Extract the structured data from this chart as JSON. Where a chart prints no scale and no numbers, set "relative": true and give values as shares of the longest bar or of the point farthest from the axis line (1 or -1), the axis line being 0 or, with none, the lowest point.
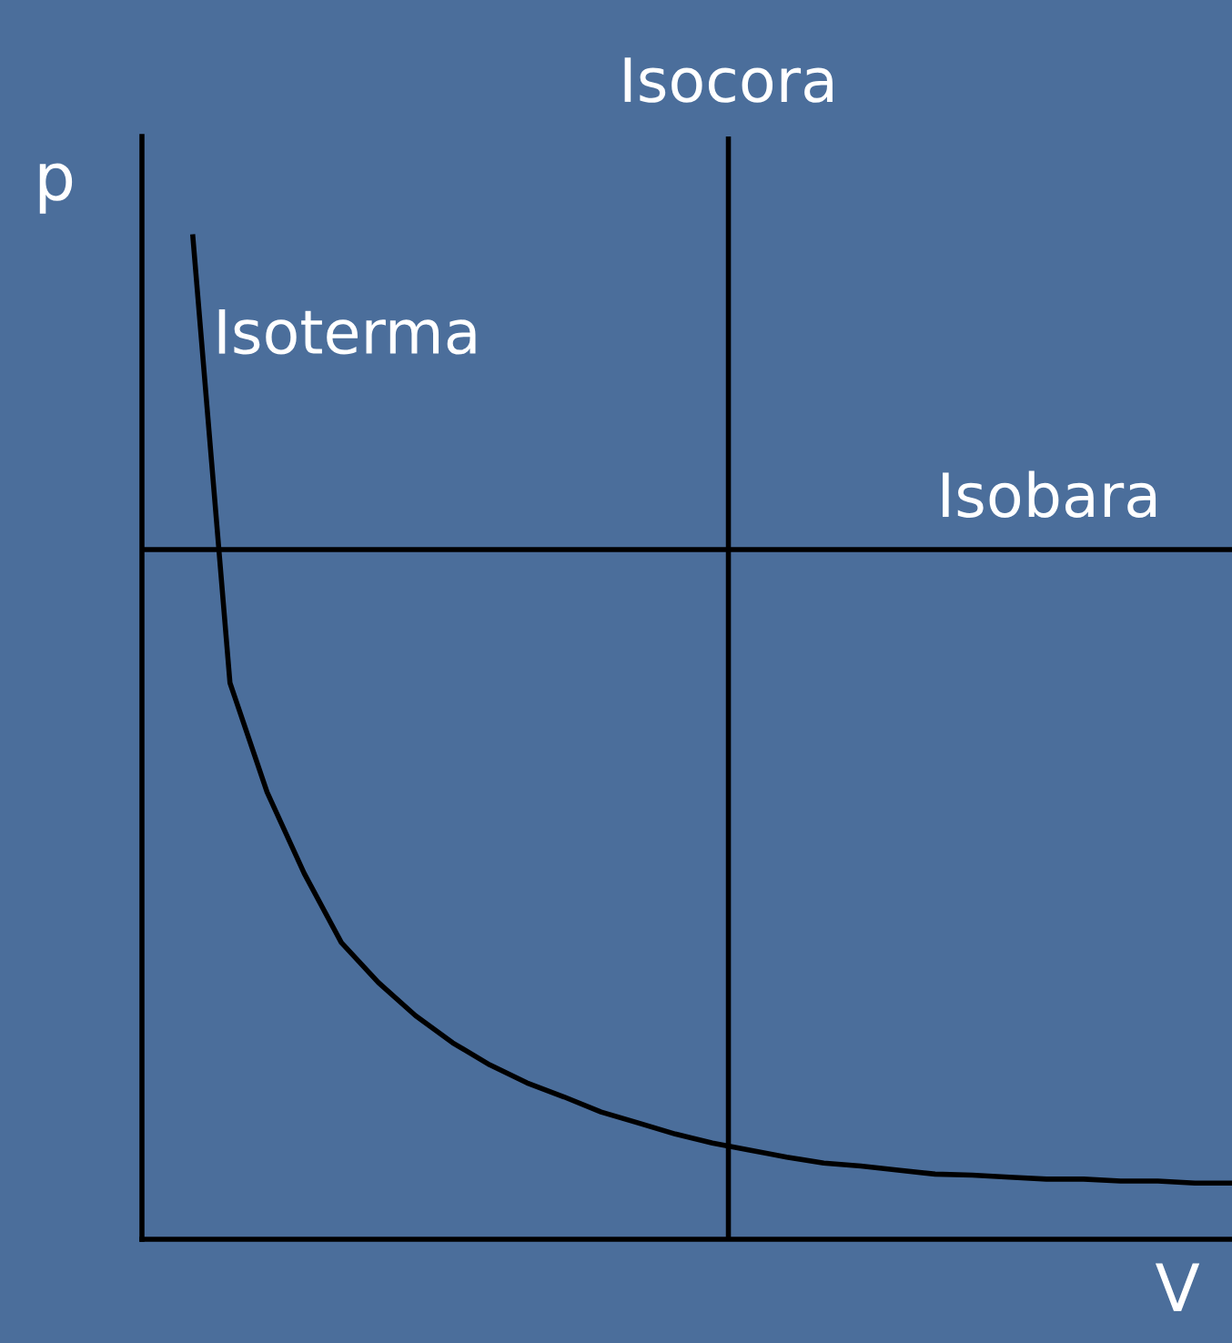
{
  "chart_data": {
    "type": "line",
    "relative": true,
    "xlabel": "V",
    "ylabel": "p",
    "marker": "none",
    "line_style": "solid",
    "categories": [
      null,
      null,
      null,
      null,
      null,
      null,
      null,
      null,
      null,
      null,
      null,
      null,
      null,
      null,
      null,
      null,
      null,
      null,
      null,
      null,
      null,
      null,
      null,
      null,
      null,
      null,
      null,
      null,
      null
    ],
    "series": [
      {
        "name": "Isoterma",
        "color": "#000000",
        "values": [
          1.0,
          0.555,
          0.446,
          0.365,
          0.296,
          0.256,
          0.223,
          0.196,
          0.174,
          0.156,
          0.142,
          0.127,
          0.116,
          0.105,
          0.096,
          0.089,
          0.082,
          0.076,
          0.073,
          0.069,
          0.065,
          0.064,
          0.062,
          0.06,
          0.06,
          0.058,
          0.058,
          0.056,
          0.056
        ]
      }
    ],
    "ref_lines": [
      {
        "axis": "x",
        "label": "Isocora",
        "color": "#000000"
      },
      {
        "axis": "y",
        "value": 0.688,
        "label": "Isobara",
        "color": "#000000"
      }
    ]
  }
}
